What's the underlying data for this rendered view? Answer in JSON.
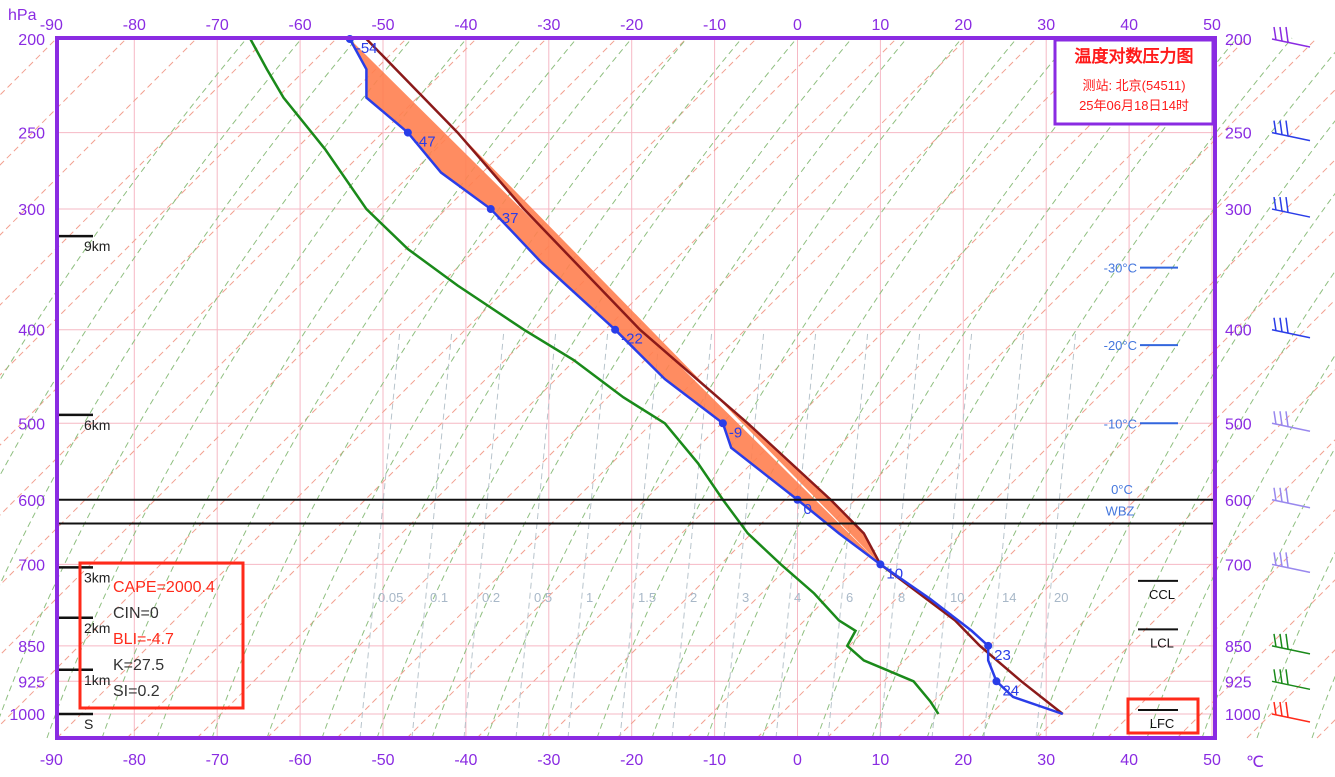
{
  "chart_data": {
    "type": "skew-t log-p diagram",
    "title": "温度对数压力图",
    "station_text": "测站: 北京(54511)",
    "time_text": "25年06月18日14时",
    "x_unit": "℃",
    "y_unit": "hPa",
    "x_ticks": [
      -90,
      -80,
      -70,
      -60,
      -50,
      -40,
      -30,
      -20,
      -10,
      0,
      10,
      20,
      30,
      40,
      50
    ],
    "p_ticks": [
      200,
      250,
      300,
      400,
      500,
      600,
      700,
      850,
      925,
      1000
    ],
    "temperature_profile": [
      {
        "p": 200,
        "t": -54
      },
      {
        "p": 215,
        "t": -52
      },
      {
        "p": 230,
        "t": -52
      },
      {
        "p": 250,
        "t": -47
      },
      {
        "p": 275,
        "t": -43
      },
      {
        "p": 300,
        "t": -37
      },
      {
        "p": 340,
        "t": -31
      },
      {
        "p": 400,
        "t": -22
      },
      {
        "p": 450,
        "t": -16
      },
      {
        "p": 500,
        "t": -9
      },
      {
        "p": 530,
        "t": -8
      },
      {
        "p": 600,
        "t": 0
      },
      {
        "p": 650,
        "t": 5
      },
      {
        "p": 700,
        "t": 10
      },
      {
        "p": 760,
        "t": 16
      },
      {
        "p": 820,
        "t": 21
      },
      {
        "p": 850,
        "t": 23
      },
      {
        "p": 880,
        "t": 23
      },
      {
        "p": 925,
        "t": 24
      },
      {
        "p": 960,
        "t": 26
      },
      {
        "p": 1000,
        "t": 32
      }
    ],
    "temperature_labels": [
      {
        "p": 200,
        "t": -54,
        "label": "-54"
      },
      {
        "p": 250,
        "t": -47,
        "label": "-47"
      },
      {
        "p": 300,
        "t": -37,
        "label": "-37"
      },
      {
        "p": 400,
        "t": -22,
        "label": "-22"
      },
      {
        "p": 500,
        "t": -9,
        "label": "-9"
      },
      {
        "p": 600,
        "t": 0,
        "label": "0"
      },
      {
        "p": 700,
        "t": 10,
        "label": "10"
      },
      {
        "p": 850,
        "t": 23,
        "label": "23"
      },
      {
        "p": 925,
        "t": 24,
        "label": "24"
      }
    ],
    "dewpoint_profile": [
      {
        "p": 200,
        "t": -66
      },
      {
        "p": 215,
        "t": -64
      },
      {
        "p": 230,
        "t": -62
      },
      {
        "p": 260,
        "t": -57
      },
      {
        "p": 300,
        "t": -52
      },
      {
        "p": 330,
        "t": -47
      },
      {
        "p": 360,
        "t": -41
      },
      {
        "p": 400,
        "t": -33
      },
      {
        "p": 430,
        "t": -27
      },
      {
        "p": 470,
        "t": -21
      },
      {
        "p": 500,
        "t": -16
      },
      {
        "p": 550,
        "t": -12
      },
      {
        "p": 600,
        "t": -9
      },
      {
        "p": 650,
        "t": -6
      },
      {
        "p": 700,
        "t": -2
      },
      {
        "p": 750,
        "t": 2
      },
      {
        "p": 800,
        "t": 5
      },
      {
        "p": 820,
        "t": 7
      },
      {
        "p": 850,
        "t": 6
      },
      {
        "p": 880,
        "t": 8
      },
      {
        "p": 925,
        "t": 14
      },
      {
        "p": 970,
        "t": 16
      },
      {
        "p": 1000,
        "t": 17
      }
    ],
    "parcel_path": [
      {
        "p": 1000,
        "t": 32
      },
      {
        "p": 925,
        "t": 27
      },
      {
        "p": 850,
        "t": 22
      },
      {
        "p": 800,
        "t": 19
      },
      {
        "p": 700,
        "t": 10
      },
      {
        "p": 650,
        "t": 8
      },
      {
        "p": 600,
        "t": 4
      },
      {
        "p": 500,
        "t": -6
      },
      {
        "p": 400,
        "t": -19
      },
      {
        "p": 300,
        "t": -33
      },
      {
        "p": 250,
        "t": -41
      },
      {
        "p": 200,
        "t": -52
      }
    ],
    "height_marks": [
      {
        "label": "9km",
        "p": 320
      },
      {
        "label": "6km",
        "p": 490
      },
      {
        "label": "3km",
        "p": 705
      },
      {
        "label": "2km",
        "p": 795
      },
      {
        "label": "1km",
        "p": 900
      },
      {
        "label": "S",
        "p": 1000
      }
    ],
    "isotherm_markers": [
      {
        "label": "-30°C",
        "p": 345
      },
      {
        "label": "-20°C",
        "p": 415
      },
      {
        "label": "-10°C",
        "p": 500
      }
    ],
    "freezing_level": {
      "label": "0°C",
      "p": 600
    },
    "wet_bulb_zero": {
      "label": "WBZ",
      "p": 635
    },
    "level_markers": [
      {
        "label": "CCL",
        "p": 735
      },
      {
        "label": "LCL",
        "p": 825
      },
      {
        "label": "LFC",
        "p": 1000
      }
    ],
    "mixing_ratio_labels": [
      "0.05",
      "0.1",
      "0.2",
      "0.5",
      "1",
      "1.5",
      "2",
      "3",
      "4",
      "6",
      "8",
      "10",
      "14",
      "20"
    ],
    "indices": [
      {
        "label": "CAPE=2000.4",
        "color": "#ff2a1a"
      },
      {
        "label": "CIN=0",
        "color": "#333333"
      },
      {
        "label": "BLI=-4.7",
        "color": "#ff2a1a"
      },
      {
        "label": "K=27.5",
        "color": "#333333"
      },
      {
        "label": "SI=0.2",
        "color": "#333333"
      }
    ],
    "colors": {
      "frame": "#8a2be2",
      "temperature": "#2a3de8",
      "dewpoint": "#1a8a1a",
      "parcel": "#8b1a1a",
      "cape_fill": "#ff7f50",
      "title": "#ff1a1a",
      "grid": "#f6b8c4"
    }
  }
}
